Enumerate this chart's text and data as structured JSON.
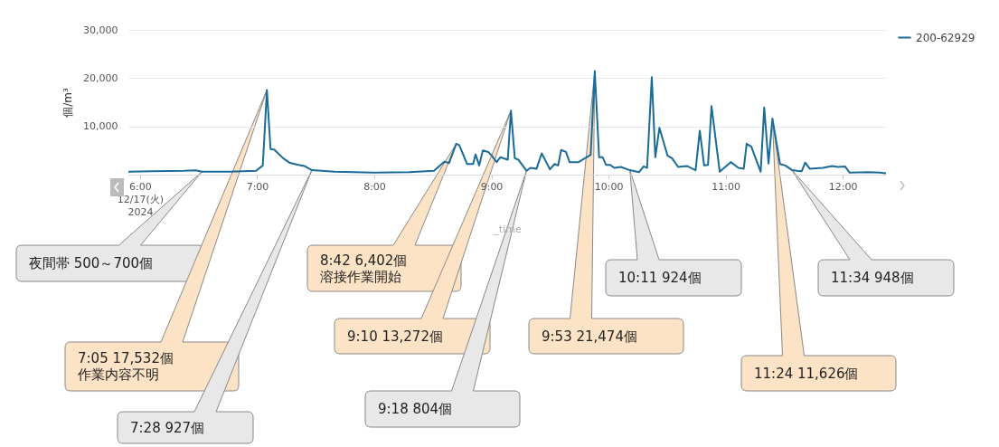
{
  "chart_data": {
    "type": "line",
    "xlabel": "_time",
    "ylabel": "個/m³",
    "x": [
      5.905,
      6.1,
      6.373,
      6.476,
      6.528,
      6.75,
      6.991,
      7.048,
      7.083,
      7.114,
      7.145,
      7.222,
      7.274,
      7.351,
      7.403,
      7.467,
      7.66,
      7.995,
      8.3,
      8.51,
      8.6,
      8.639,
      8.7,
      8.726,
      8.793,
      8.844,
      8.865,
      8.896,
      8.927,
      8.973,
      9.0,
      9.045,
      9.076,
      9.14,
      9.167,
      9.2,
      9.23,
      9.3,
      9.334,
      9.385,
      9.43,
      9.5,
      9.539,
      9.57,
      9.596,
      9.637,
      9.668,
      9.745,
      9.848,
      9.883,
      9.92,
      9.95,
      9.98,
      10.015,
      10.05,
      10.106,
      10.183,
      10.26,
      10.3,
      10.33,
      10.37,
      10.4,
      10.435,
      10.505,
      10.543,
      10.595,
      10.67,
      10.744,
      10.78,
      10.817,
      10.85,
      10.88,
      10.95,
      11.045,
      11.11,
      11.155,
      11.18,
      11.22,
      11.3,
      11.33,
      11.367,
      11.4,
      11.465,
      11.51,
      11.567,
      11.611,
      11.65,
      11.68,
      11.72,
      11.83,
      11.91,
      11.96,
      12.02,
      12.06,
      12.216,
      12.319,
      12.365
    ],
    "series": [
      {
        "name": "200-62929",
        "color": "#1a6b96",
        "values": [
          600,
          700,
          800,
          900,
          600,
          600,
          800,
          1900,
          17532,
          5300,
          5200,
          3400,
          2500,
          2000,
          1800,
          927,
          600,
          400,
          500,
          800,
          2700,
          2400,
          6402,
          6100,
          2200,
          2200,
          4200,
          1900,
          5000,
          4700,
          4000,
          2600,
          3600,
          3100,
          13272,
          3400,
          3100,
          804,
          1400,
          1200,
          4400,
          1100,
          2200,
          1900,
          5100,
          4700,
          2600,
          2600,
          4100,
          21474,
          3600,
          3600,
          2000,
          2000,
          1400,
          1600,
          924,
          500,
          1700,
          1400,
          20200,
          3600,
          9700,
          3900,
          3400,
          1600,
          1800,
          900,
          9100,
          1900,
          2000,
          14200,
          600,
          2600,
          1400,
          1200,
          6400,
          5800,
          600,
          13900,
          2300,
          11626,
          2200,
          1900,
          948,
          800,
          700,
          2500,
          1200,
          1400,
          1800,
          1600,
          1700,
          400,
          500,
          400,
          300
        ]
      }
    ],
    "xlim": [
      5.9,
      12.37
    ],
    "xticks": [
      {
        "value": 6,
        "label": "6:00\n12/17(火)\n2024"
      },
      {
        "value": 7,
        "label": "7:00"
      },
      {
        "value": 8,
        "label": "8:00"
      },
      {
        "value": 9,
        "label": "9:00"
      },
      {
        "value": 10,
        "label": "10:00"
      },
      {
        "value": 11,
        "label": "11:00"
      },
      {
        "value": 12,
        "label": "12:00"
      }
    ],
    "ylim": [
      0,
      30000
    ],
    "yticks": [
      {
        "value": 10000,
        "label": "10,000"
      },
      {
        "value": 20000,
        "label": "20,000"
      },
      {
        "value": 30000,
        "label": "30,000"
      }
    ],
    "grid": "y",
    "legend": "right",
    "marker": "none",
    "line_style": "solid",
    "annotations": [
      "夜間帯 500～700個",
      "7:05 17,532個作業内容不明",
      "7:28 927個",
      "8:42 6,402個溶接作業開始",
      "9:10 13,272個",
      "9:18 804個",
      "9:53 21,474個",
      "10:11 924個",
      "11:24 11,626個",
      "11:34 948個"
    ]
  }
}
